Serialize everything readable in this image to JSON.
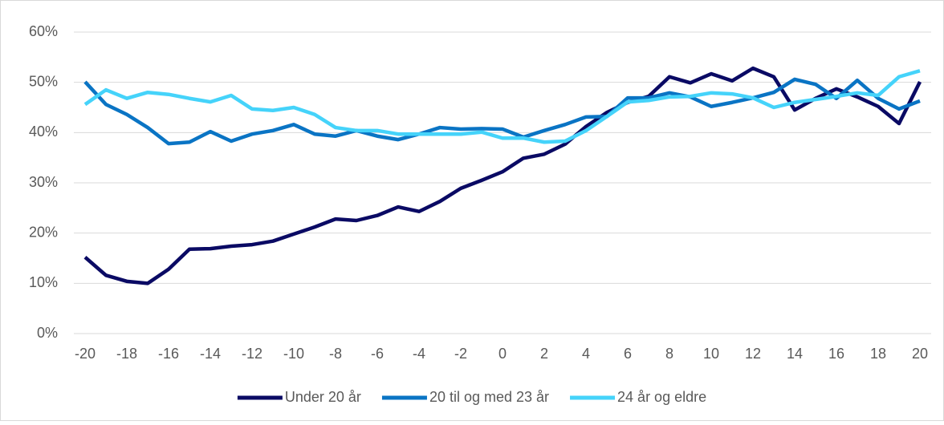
{
  "chart_data": {
    "type": "line",
    "x": [
      -20,
      -19,
      -18,
      -17,
      -16,
      -15,
      -14,
      -13,
      -12,
      -11,
      -10,
      -9,
      -8,
      -7,
      -6,
      -5,
      -4,
      -3,
      -2,
      -1,
      0,
      1,
      2,
      3,
      4,
      5,
      6,
      7,
      8,
      9,
      10,
      11,
      12,
      13,
      14,
      15,
      16,
      17,
      18,
      19,
      20
    ],
    "series": [
      {
        "name": "Under 20 år",
        "color": "#0a0a64",
        "values": [
          15.2,
          11.6,
          10.4,
          10.0,
          12.8,
          16.8,
          16.9,
          17.4,
          17.7,
          18.4,
          19.8,
          21.2,
          22.8,
          22.5,
          23.5,
          25.2,
          24.3,
          26.3,
          28.9,
          30.5,
          32.2,
          34.9,
          35.7,
          37.7,
          41.2,
          44.0,
          46.0,
          47.2,
          51.1,
          49.9,
          51.7,
          50.3,
          52.8,
          51.1,
          44.5,
          46.8,
          48.7,
          47.1,
          45.2,
          41.8,
          50.1
        ]
      },
      {
        "name": "20 til og med 23 år",
        "color": "#0a74c4",
        "values": [
          50.1,
          45.6,
          43.6,
          41.0,
          37.8,
          38.1,
          40.2,
          38.3,
          39.7,
          40.4,
          41.6,
          39.7,
          39.3,
          40.4,
          39.3,
          38.6,
          39.7,
          41.0,
          40.7,
          40.8,
          40.7,
          39.1,
          40.4,
          41.6,
          43.1,
          43.2,
          46.9,
          46.9,
          47.9,
          47.1,
          45.2,
          46.0,
          46.9,
          48.0,
          50.6,
          49.6,
          46.8,
          50.4,
          46.8,
          44.7,
          46.3
        ]
      },
      {
        "name": "24 år og eldre",
        "color": "#45d3fa",
        "values": [
          45.6,
          48.5,
          46.8,
          48.0,
          47.6,
          46.8,
          46.1,
          47.4,
          44.7,
          44.4,
          45.0,
          43.6,
          41.0,
          40.4,
          40.4,
          39.7,
          39.7,
          39.7,
          39.7,
          40.1,
          38.9,
          38.9,
          38.1,
          38.3,
          40.4,
          43.2,
          46.1,
          46.4,
          47.1,
          47.2,
          47.9,
          47.7,
          46.9,
          45.0,
          46.0,
          46.6,
          47.2,
          47.9,
          47.4,
          51.1,
          52.3
        ]
      }
    ],
    "xlim": [
      -20,
      20
    ],
    "xticks": [
      -20,
      -18,
      -16,
      -14,
      -12,
      -10,
      -8,
      -6,
      -4,
      -2,
      0,
      2,
      4,
      6,
      8,
      10,
      12,
      14,
      16,
      18,
      20
    ],
    "ylim": [
      0,
      60
    ],
    "yticks": [
      {
        "value": 0,
        "label": "0%"
      },
      {
        "value": 10,
        "label": "10%"
      },
      {
        "value": 20,
        "label": "20%"
      },
      {
        "value": 30,
        "label": "30%"
      },
      {
        "value": 40,
        "label": "40%"
      },
      {
        "value": 50,
        "label": "50%"
      },
      {
        "value": 60,
        "label": "60%"
      }
    ],
    "grid": true,
    "legend": "bottom"
  }
}
